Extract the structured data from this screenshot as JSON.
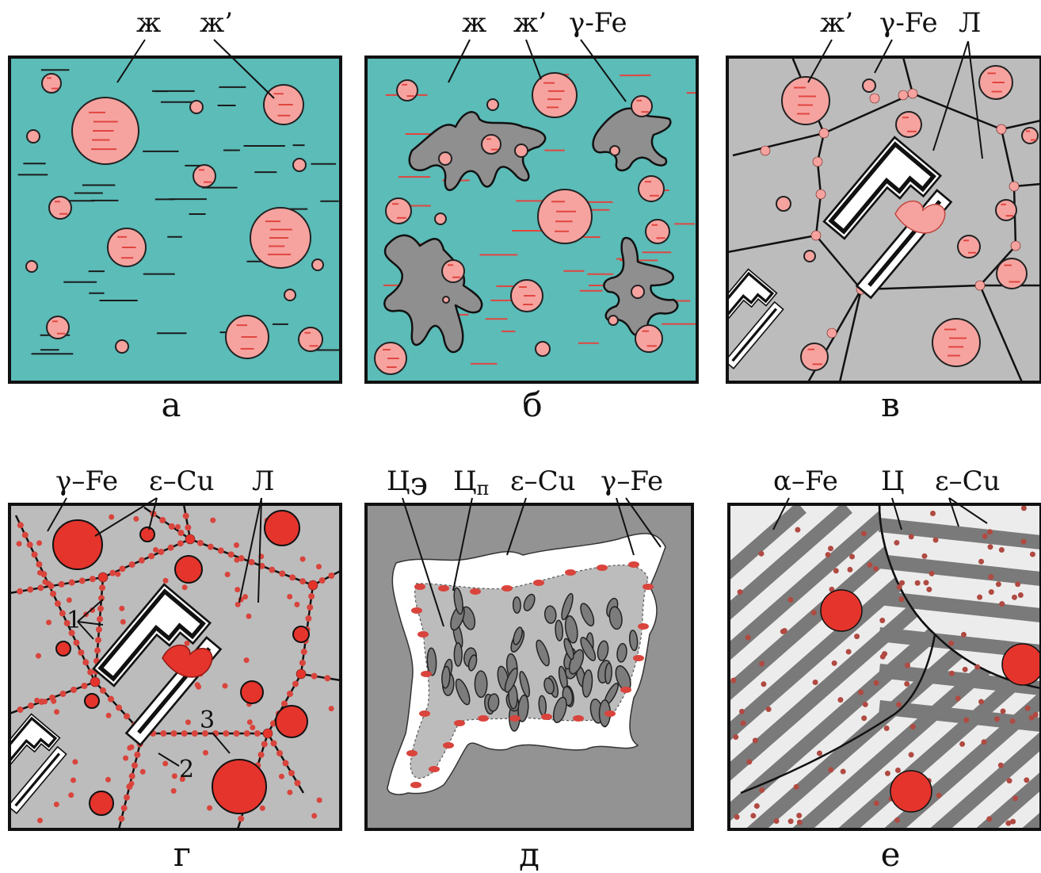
{
  "colors": {
    "liquid": "#5bbcb8",
    "drop": "#f6a3a0",
    "drop_edge": "#222222",
    "dash_red": "#e0463f",
    "dash_dark": "#1c1c1c",
    "austenite": "#bcbcbc",
    "dendrite": "#8f8f8f",
    "ledeburite": "#ffffff",
    "cu": "#e5342c",
    "cu_small": "#d9443c",
    "cementite_bg": "#939393",
    "ferrite": "#ececec",
    "pearlite_plate": "#7a7a7a",
    "frame": "#111111"
  },
  "panels": {
    "a": {
      "caption": "а",
      "labels": {
        "liquid": "ж",
        "liquid2": "ж’"
      }
    },
    "b": {
      "caption": "б",
      "labels": {
        "liquid": "ж",
        "liquid2": "ж’",
        "austenite": "γ-Fe"
      }
    },
    "v": {
      "caption": "в",
      "labels": {
        "liquid2": "ж’",
        "austenite": "γ-Fe",
        "ledeburite": "Л"
      }
    },
    "g": {
      "caption": "г",
      "labels": {
        "austenite": "γ–Fe",
        "copper": "ε–Cu",
        "ledeburite": "Л"
      },
      "numbers": [
        "1",
        "2",
        "3"
      ]
    },
    "d": {
      "caption": "д",
      "labels": {
        "cem_e_base": "Ц",
        "cem_e_sub": "э",
        "cem_p_base": "Ц",
        "cem_p_sub": "п",
        "copper": "ε–Cu",
        "austenite": "γ–Fe"
      }
    },
    "e": {
      "caption": "е",
      "labels": {
        "ferrite": "α–Fe",
        "cementite": "Ц",
        "copper": "ε–Cu"
      }
    }
  }
}
